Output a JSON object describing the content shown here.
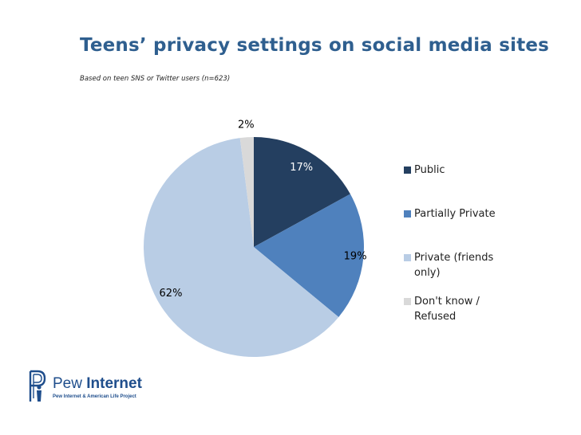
{
  "header": {
    "title": "Teens’ privacy settings on social media sites",
    "subtitle": "Based on teen SNS or Twitter users (n=623)"
  },
  "chart_data": {
    "type": "pie",
    "title": "Teens’ privacy settings on social media sites",
    "subtitle": "Based on teen SNS or Twitter users (n=623)",
    "categories": [
      "Public",
      "Partially Private",
      "Private (friends only)",
      "Don't know / Refused"
    ],
    "values": [
      17,
      19,
      62,
      2
    ],
    "data_labels": [
      "17%",
      "19%",
      "62%",
      "2%"
    ],
    "colors": [
      "#243f60",
      "#4f81bd",
      "#b9cde5",
      "#d9d9d9"
    ],
    "label_colors": [
      "#ffffff",
      "#000000",
      "#000000",
      "#000000"
    ],
    "start_angle_deg": 0,
    "direction": "clockwise",
    "legend_position": "right"
  },
  "legend": {
    "items": [
      {
        "label": "Public"
      },
      {
        "label": "Partially Private"
      },
      {
        "label": "Private (friends only)"
      },
      {
        "label": "Don't know / Refused"
      }
    ]
  },
  "logo": {
    "name_part1": "Pew ",
    "name_part2": "Internet",
    "tagline": "Pew Internet & American Life Project",
    "color": "#1f4e8c"
  }
}
